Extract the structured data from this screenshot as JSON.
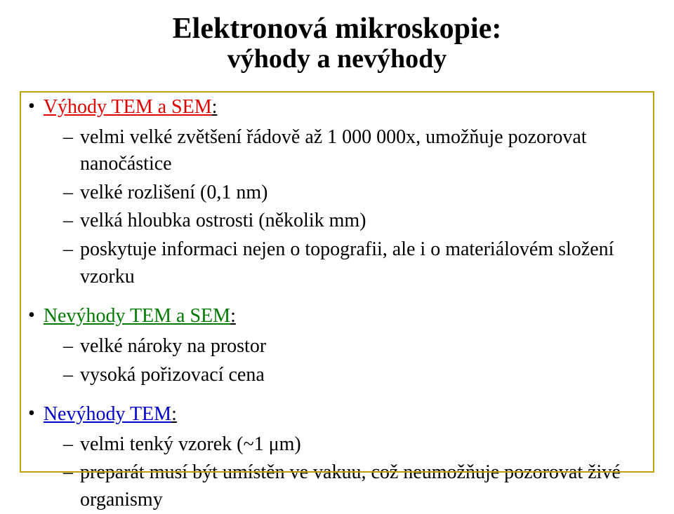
{
  "title": {
    "line1": "Elektronová mikroskopie:",
    "line2": "výhody a nevýhody"
  },
  "sections": {
    "vyhody": {
      "heading": "Výhody TEM a SEM",
      "items": [
        "velmi velké zvětšení řádově až 1 000 000x, umožňuje pozorovat nanočástice",
        "velké rozlišení (0,1 nm)",
        "velká hloubka ostrosti (několik mm)",
        "poskytuje informaci nejen o topografii, ale i o materiálovém složení vzorku"
      ]
    },
    "nevyhody_both": {
      "heading": "Nevýhody TEM a SEM",
      "items": [
        "velké nároky na prostor",
        "vysoká pořizovací cena"
      ]
    },
    "nevyhody_tem": {
      "heading": "Nevýhody TEM",
      "items": [
        "velmi tenký vzorek (~1 μm)",
        "preparát musí být umístěn ve vakuu, což neumožňuje pozorovat živé organismy"
      ]
    }
  },
  "style": {
    "frame_border_color": "#c0a000",
    "red": "#e00000",
    "green": "#007a00",
    "blue": "#0000cc"
  }
}
